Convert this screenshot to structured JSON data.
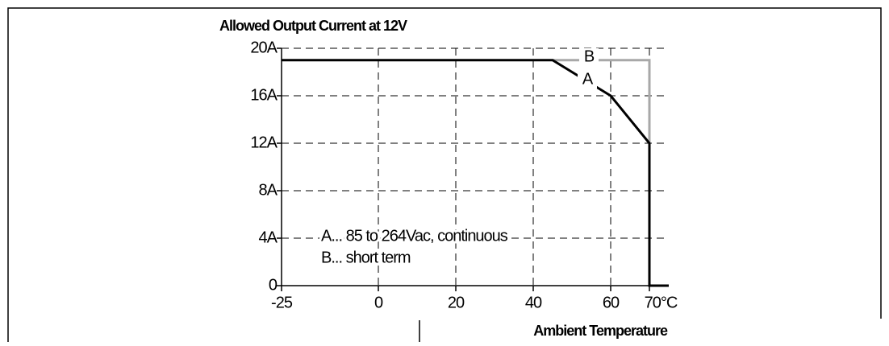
{
  "chart_data": {
    "type": "line",
    "title": "Allowed Output Current at 12V",
    "xlabel": "Ambient Temperature",
    "xlim": [
      -25,
      75
    ],
    "xticks": [
      -25,
      0,
      20,
      40,
      60,
      {
        "value": 70,
        "label": "70°C"
      }
    ],
    "ylim": [
      0,
      20
    ],
    "yticks": [
      0,
      {
        "value": 4,
        "label": "4A"
      },
      {
        "value": 8,
        "label": "8A"
      },
      {
        "value": 12,
        "label": "12A"
      },
      {
        "value": 16,
        "label": "16A"
      },
      {
        "value": 20,
        "label": "20A"
      }
    ],
    "grid": true,
    "series": [
      {
        "name": "B",
        "color": "#a8a8a8",
        "x": [
          45,
          70,
          70
        ],
        "values": [
          19,
          19,
          12
        ]
      },
      {
        "name": "A",
        "color": "#000000",
        "x": [
          -25,
          45,
          60,
          70,
          70,
          75
        ],
        "values": [
          19,
          19,
          16,
          12,
          0,
          0
        ]
      }
    ],
    "annotations": [
      "A... 85 to 264Vac, continuous",
      "B... short term"
    ]
  }
}
